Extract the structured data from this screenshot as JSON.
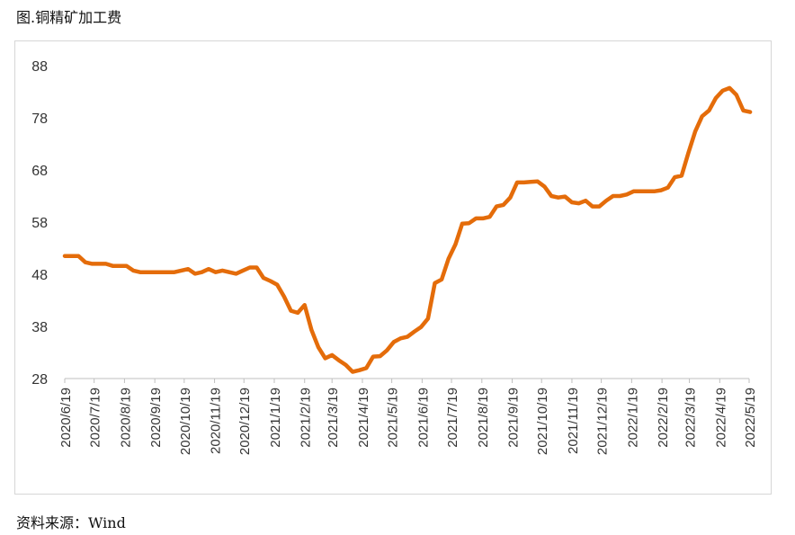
{
  "title": "图.铜精矿加工费",
  "source": "资料来源：Wind",
  "chart_data": {
    "type": "line",
    "title": "",
    "xlabel": "",
    "ylabel": "",
    "ylim": [
      28,
      88
    ],
    "yticks": [
      28,
      38,
      48,
      58,
      68,
      78,
      88
    ],
    "xticks": [
      "2020/6/19",
      "2020/7/19",
      "2020/8/19",
      "2020/9/19",
      "2020/10/19",
      "2020/11/19",
      "2020/12/19",
      "2021/1/19",
      "2021/2/19",
      "2021/3/19",
      "2021/4/19",
      "2021/5/19",
      "2021/6/19",
      "2021/7/19",
      "2021/8/19",
      "2021/9/19",
      "2021/10/19",
      "2021/11/19",
      "2021/12/19",
      "2022/1/19",
      "2022/2/19",
      "2022/3/19",
      "2022/4/19",
      "2022/5/19"
    ],
    "grid": false,
    "legend": "none",
    "line_color": "#e46c0a",
    "series": [
      {
        "x": [
          "2020/6/19",
          "2020/6/26",
          "2020/7/3",
          "2020/7/10",
          "2020/7/17",
          "2020/7/24",
          "2020/7/31",
          "2020/8/7",
          "2020/8/14",
          "2020/8/21",
          "2020/8/28",
          "2020/9/4",
          "2020/9/11",
          "2020/9/18",
          "2020/9/25",
          "2020/10/2",
          "2020/10/9",
          "2020/10/16",
          "2020/10/23",
          "2020/10/30",
          "2020/11/6",
          "2020/11/13",
          "2020/11/20",
          "2020/11/27",
          "2020/12/4",
          "2020/12/11",
          "2020/12/18",
          "2020/12/25",
          "2021/1/1",
          "2021/1/8",
          "2021/1/15",
          "2021/1/22",
          "2021/1/29",
          "2021/2/5",
          "2021/2/12",
          "2021/2/19",
          "2021/2/26",
          "2021/3/5",
          "2021/3/12",
          "2021/3/19",
          "2021/3/26",
          "2021/4/2",
          "2021/4/9",
          "2021/4/16",
          "2021/4/23",
          "2021/4/30",
          "2021/5/7",
          "2021/5/14",
          "2021/5/21",
          "2021/5/28",
          "2021/6/4",
          "2021/6/11",
          "2021/6/18",
          "2021/6/25",
          "2021/7/2",
          "2021/7/9",
          "2021/7/16",
          "2021/7/23",
          "2021/7/30",
          "2021/8/6",
          "2021/8/13",
          "2021/8/20",
          "2021/8/27",
          "2021/9/3",
          "2021/9/10",
          "2021/9/17",
          "2021/9/24",
          "2021/10/1",
          "2021/10/8",
          "2021/10/15",
          "2021/10/22",
          "2021/10/29",
          "2021/11/5",
          "2021/11/12",
          "2021/11/19",
          "2021/11/26",
          "2021/12/3",
          "2021/12/10",
          "2021/12/17",
          "2021/12/24",
          "2021/12/31",
          "2022/1/7",
          "2022/1/14",
          "2022/1/21",
          "2022/1/28",
          "2022/2/4",
          "2022/2/11",
          "2022/2/18",
          "2022/2/25",
          "2022/3/4",
          "2022/3/11",
          "2022/3/18",
          "2022/3/25",
          "2022/4/1",
          "2022/4/8",
          "2022/4/15",
          "2022/4/22",
          "2022/4/29",
          "2022/5/6",
          "2022/5/13",
          "2022/5/20"
        ],
        "values": [
          51.5,
          51.5,
          51.5,
          50.3,
          50,
          50,
          50,
          49.6,
          49.6,
          49.6,
          48.7,
          48.4,
          48.4,
          48.4,
          48.4,
          48.4,
          48.4,
          48.7,
          49,
          48.1,
          48.4,
          49,
          48.4,
          48.7,
          48.4,
          48.1,
          48.7,
          49.3,
          49.3,
          47.3,
          46.7,
          46,
          43.7,
          41,
          40.6,
          42.1,
          37.3,
          34,
          31.9,
          32.5,
          31.5,
          30.6,
          29.3,
          29.6,
          30,
          32.2,
          32.3,
          33.4,
          35,
          35.7,
          36,
          37,
          37.9,
          39.5,
          46.3,
          47,
          51,
          53.7,
          57.7,
          57.8,
          58.7,
          58.7,
          59,
          61,
          61.3,
          62.7,
          65.6,
          65.6,
          65.7,
          65.8,
          64.8,
          63,
          62.7,
          62.9,
          61.8,
          61.6,
          62.1,
          61,
          61,
          62.1,
          63,
          63,
          63.3,
          63.9,
          63.9,
          63.9,
          63.9,
          64.1,
          64.6,
          66.6,
          66.9,
          71.3,
          75.4,
          78.3,
          79.4,
          81.8,
          83.2,
          83.7,
          82.4,
          79.4,
          79.1
        ]
      }
    ]
  }
}
